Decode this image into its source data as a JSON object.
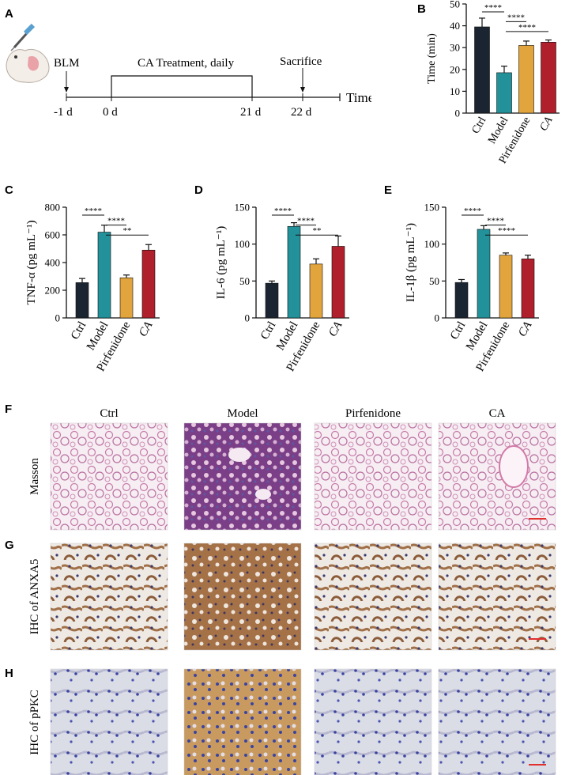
{
  "panels": {
    "a": "A",
    "b": "B",
    "c": "C",
    "d": "D",
    "e": "E",
    "f": "F",
    "g": "G",
    "h": "H"
  },
  "timeline": {
    "treatment": "CA Treatment, daily",
    "blm": "BLM",
    "sacrifice": "Sacrifice",
    "axis_label": "Time",
    "ticks": [
      "-1 d",
      "0 d",
      "21 d",
      "22 d"
    ]
  },
  "colors": {
    "Ctrl": "#1b2431",
    "Model": "#22919a",
    "Pirfenidone": "#e2a43d",
    "CA": "#b01f2c"
  },
  "chart_data": [
    {
      "id": "B",
      "type": "bar",
      "categories": [
        "Ctrl",
        "Model",
        "Pirfenidone",
        "CA"
      ],
      "values": [
        39.5,
        18.5,
        31,
        32.5
      ],
      "errors": [
        4,
        3,
        2,
        1
      ],
      "ylabel": "Time (min)",
      "ylim": [
        0,
        50
      ],
      "yticks": [
        0,
        10,
        20,
        30,
        40,
        50
      ],
      "sig": [
        {
          "from": 0,
          "to": 1,
          "label": "****"
        },
        {
          "from": 1,
          "to": 2,
          "label": "****"
        },
        {
          "from": 1,
          "to": 3,
          "label": "****"
        }
      ]
    },
    {
      "id": "C",
      "type": "bar",
      "categories": [
        "Ctrl",
        "Model",
        "Pirfenidone",
        "CA"
      ],
      "values": [
        255,
        620,
        290,
        490
      ],
      "errors": [
        30,
        50,
        20,
        40
      ],
      "ylabel": "TNF-α (pg mL⁻¹)",
      "ylim": [
        0,
        800
      ],
      "yticks": [
        0,
        200,
        400,
        600,
        800
      ],
      "sig": [
        {
          "from": 0,
          "to": 1,
          "label": "****"
        },
        {
          "from": 1,
          "to": 2,
          "label": "****"
        },
        {
          "from": 1,
          "to": 3,
          "label": "**"
        }
      ]
    },
    {
      "id": "D",
      "type": "bar",
      "categories": [
        "Ctrl",
        "Model",
        "Pirfenidone",
        "CA"
      ],
      "values": [
        47,
        124,
        73,
        97
      ],
      "errors": [
        3,
        5,
        7,
        14
      ],
      "ylabel": "IL-6 (pg mL⁻¹)",
      "ylim": [
        0,
        150
      ],
      "yticks": [
        0,
        50,
        100,
        150
      ],
      "sig": [
        {
          "from": 0,
          "to": 1,
          "label": "****"
        },
        {
          "from": 1,
          "to": 2,
          "label": "****"
        },
        {
          "from": 1,
          "to": 3,
          "label": "**"
        }
      ]
    },
    {
      "id": "E",
      "type": "bar",
      "categories": [
        "Ctrl",
        "Model",
        "Pirfenidone",
        "CA"
      ],
      "values": [
        48,
        120,
        85,
        80
      ],
      "errors": [
        4,
        5,
        3,
        5
      ],
      "ylabel": "IL-1β (pg mL⁻¹)",
      "ylim": [
        0,
        150
      ],
      "yticks": [
        0,
        50,
        100,
        150
      ],
      "sig": [
        {
          "from": 0,
          "to": 1,
          "label": "****"
        },
        {
          "from": 1,
          "to": 2,
          "label": "****"
        },
        {
          "from": 1,
          "to": 3,
          "label": "****"
        }
      ]
    }
  ],
  "histology": {
    "columns": [
      "Ctrl",
      "Model",
      "Pirfenidone",
      "CA"
    ],
    "rows": [
      {
        "label": "Masson",
        "style": "masson"
      },
      {
        "label": "IHC of ANXA5",
        "style": "ihc-brown"
      },
      {
        "label": "IHC of pPKC",
        "style": "ihc-blue"
      }
    ],
    "scale_bar_color": "#e03030"
  }
}
